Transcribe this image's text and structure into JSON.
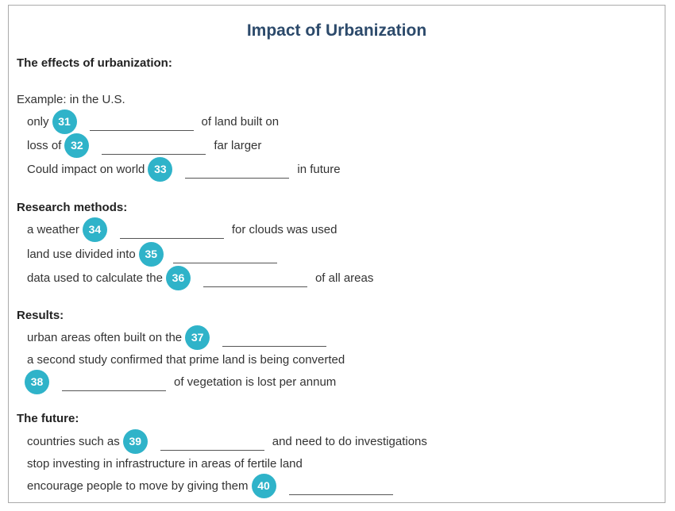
{
  "colors": {
    "badge_bg": "#2fb3c9",
    "badge_text": "#ffffff",
    "blank_line": "#555555",
    "title": "#2c4a6b"
  },
  "title": "Impact of Urbanization",
  "effects": {
    "heading": "The effects of urbanization:",
    "intro": "Example: in the U.S.",
    "q31": {
      "before": "only",
      "number": "31",
      "after": "of land built on"
    },
    "q32": {
      "before": "loss of",
      "number": "32",
      "after": "far larger"
    },
    "q33": {
      "before": "Could impact on world",
      "number": "33",
      "after": "in future"
    }
  },
  "methods": {
    "heading": "Research methods:",
    "q34": {
      "before": "a weather",
      "number": "34",
      "after": "for clouds was used"
    },
    "q35": {
      "before": "land use divided into",
      "number": "35"
    },
    "q36": {
      "before": "data used to calculate the",
      "number": "36",
      "after": "of all areas"
    }
  },
  "results": {
    "heading": "Results:",
    "q37": {
      "before": "urban areas often built on the",
      "number": "37"
    },
    "note": "a second study confirmed that prime land is being converted",
    "q38": {
      "number": "38",
      "after": "of vegetation is lost per annum"
    }
  },
  "future": {
    "heading": "The future:",
    "q39": {
      "before": "countries such as",
      "number": "39",
      "after": "and need to do investigations"
    },
    "note": "stop investing in infrastructure in areas of fertile land",
    "q40": {
      "before": "encourage people to move by giving them",
      "number": "40"
    }
  }
}
